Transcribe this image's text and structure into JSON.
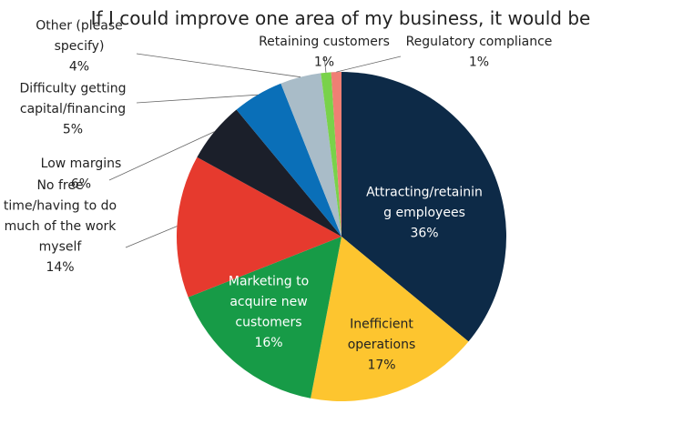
{
  "chart_data": {
    "type": "pie",
    "title": "If I could improve one area of my business, it would be",
    "slices": [
      {
        "label": "Attracting/retaining employees",
        "label_lines": [
          "Attracting/retainin",
          "g employees"
        ],
        "value": 36,
        "value_label": "36%",
        "color": "#0d2a47"
      },
      {
        "label": "Inefficient operations",
        "label_lines": [
          "Inefficient",
          "operations"
        ],
        "value": 17,
        "value_label": "17%",
        "color": "#fdc52f"
      },
      {
        "label": "Marketing to acquire new customers",
        "label_lines": [
          "Marketing to",
          "acquire new",
          "customers"
        ],
        "value": 16,
        "value_label": "16%",
        "color": "#179b47"
      },
      {
        "label": "No free time/having to do much of the work myself",
        "label_lines": [
          "No free",
          "time/having to do",
          "much of the work",
          "myself"
        ],
        "value": 14,
        "value_label": "14%",
        "color": "#e63a2e"
      },
      {
        "label": "Low margins",
        "label_lines": [
          "Low margins"
        ],
        "value": 6,
        "value_label": "6%",
        "color": "#1b1f2a"
      },
      {
        "label": "Difficulty getting capital/financing",
        "label_lines": [
          "Difficulty getting",
          "capital/financing"
        ],
        "value": 5,
        "value_label": "5%",
        "color": "#0a6fb8"
      },
      {
        "label": "Other (please specify)",
        "label_lines": [
          "Other (please",
          "specify)"
        ],
        "value": 4,
        "value_label": "4%",
        "color": "#a9bcc8"
      },
      {
        "label": "Retaining customers",
        "label_lines": [
          "Retaining customers"
        ],
        "value": 1,
        "value_label": "1%",
        "color": "#79d24a"
      },
      {
        "label": "Regulatory compliance",
        "label_lines": [
          "Regulatory compliance"
        ],
        "value": 1,
        "value_label": "1%",
        "color": "#ef7f74"
      }
    ]
  }
}
